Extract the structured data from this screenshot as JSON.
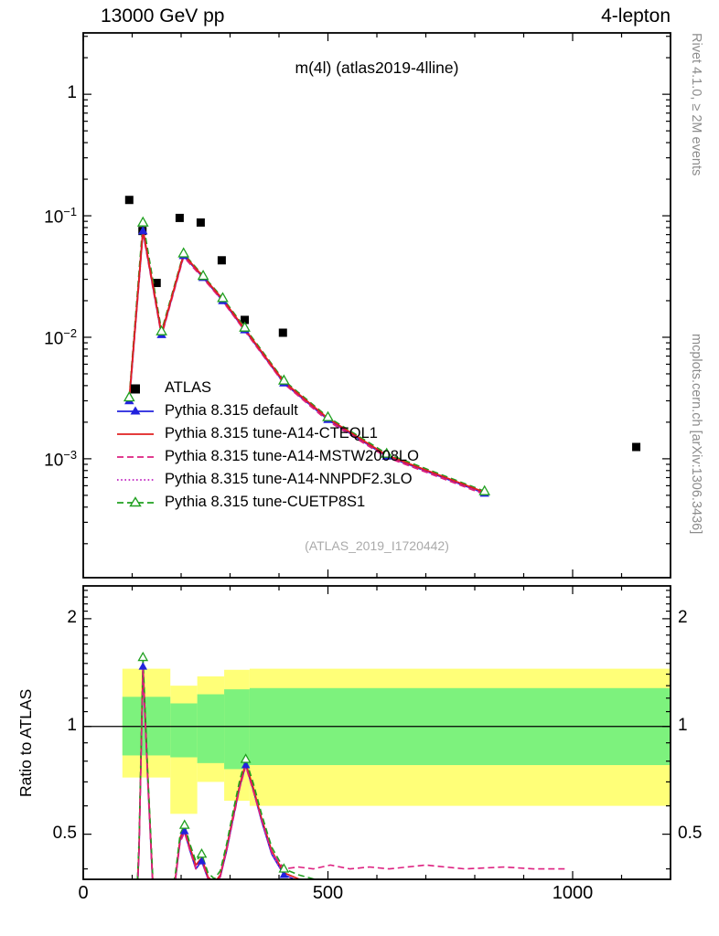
{
  "header": {
    "left": "13000 GeV pp",
    "right": "4-lepton"
  },
  "watermarks": {
    "right_top": "Rivet 4.1.0, ≥ 2M events",
    "right_bottom": "mcplots.cern.ch [arXiv:1306.3436]",
    "analysis": "(ATLAS_2019_I1720442)"
  },
  "chart_data": {
    "type": "line",
    "title": "m(4l) (atlas2019-4lline)",
    "xlabel": "",
    "x_range": [
      0,
      1200
    ],
    "x_ticks": [
      0,
      500,
      1000
    ],
    "x_minor_step": 100,
    "main": {
      "y_scale": "log",
      "y_range": [
        0.000105,
        3.2
      ],
      "y_ticks": [
        1,
        0.1,
        0.01,
        0.001
      ],
      "x": [
        94,
        122,
        160,
        205,
        245,
        285,
        330,
        410,
        500,
        620,
        820
      ],
      "atlas": {
        "label": "ATLAS",
        "color": "#000000",
        "x": [
          94,
          121,
          150,
          197,
          240,
          283,
          330,
          408,
          1130
        ],
        "y": [
          0.135,
          0.075,
          0.028,
          0.096,
          0.088,
          0.043,
          0.0139,
          0.0109,
          0.00125
        ]
      },
      "series": [
        {
          "name": "Pythia 8.315 default",
          "color": "#2222dd",
          "dash": "solid",
          "marker": "triangle-filled",
          "y": [
            0.003,
            0.075,
            0.0105,
            0.047,
            0.031,
            0.02,
            0.0115,
            0.0042,
            0.0021,
            0.00105,
            0.00052
          ]
        },
        {
          "name": "Pythia 8.315 tune-A14-CTEQL1",
          "color": "#e02020",
          "dash": "solid",
          "marker": "none",
          "y": [
            0.0031,
            0.077,
            0.0107,
            0.048,
            0.0315,
            0.0205,
            0.0117,
            0.0043,
            0.00215,
            0.00107,
            0.00053
          ]
        },
        {
          "name": "Pythia 8.315 tune-A14-MSTW2008LO",
          "color": "#dd2080",
          "dash": "dashed",
          "marker": "none",
          "y": [
            0.0029,
            0.073,
            0.0103,
            0.046,
            0.0305,
            0.0198,
            0.0113,
            0.00415,
            0.00205,
            0.00103,
            0.00051
          ]
        },
        {
          "name": "Pythia 8.315 tune-A14-NNPDF2.3LO",
          "color": "#c020c0",
          "dash": "dotted",
          "marker": "none",
          "y": [
            0.003,
            0.076,
            0.0106,
            0.047,
            0.031,
            0.02,
            0.0115,
            0.0042,
            0.0021,
            0.00105,
            0.00052
          ]
        },
        {
          "name": "Pythia 8.315 tune-CUETP8S1",
          "color": "#20a020",
          "dash": "dashed",
          "marker": "triangle-open",
          "y": [
            0.0032,
            0.088,
            0.0112,
            0.049,
            0.032,
            0.021,
            0.012,
            0.0044,
            0.0022,
            0.0011,
            0.00054
          ]
        }
      ]
    },
    "ratio": {
      "ylabel": "Ratio to ATLAS",
      "y_scale": "log",
      "y_range": [
        0.374,
        2.47
      ],
      "y_ticks": [
        0.5,
        1,
        2
      ],
      "band_colors": {
        "yellow": "#ffff78",
        "green": "#7df27d"
      },
      "bands_yellow": [
        [
          80,
          178,
          0.72,
          1.45
        ],
        [
          178,
          233,
          0.57,
          1.3
        ],
        [
          233,
          288,
          0.7,
          1.38
        ],
        [
          288,
          340,
          0.62,
          1.44
        ],
        [
          340,
          1200,
          0.6,
          1.45
        ]
      ],
      "bands_green": [
        [
          80,
          178,
          0.83,
          1.21
        ],
        [
          178,
          233,
          0.82,
          1.16
        ],
        [
          233,
          288,
          0.79,
          1.23
        ],
        [
          288,
          340,
          0.76,
          1.27
        ],
        [
          340,
          1200,
          0.78,
          1.28
        ]
      ],
      "x": [
        100,
        106,
        114,
        122,
        132,
        142,
        152,
        162,
        175,
        188,
        198,
        207,
        218,
        230,
        242,
        255,
        268,
        280,
        293,
        307,
        320,
        332,
        348,
        365,
        385,
        410,
        440,
        470,
        505,
        545,
        585,
        625
      ],
      "marker_idx": [
        3,
        11,
        14,
        21,
        25
      ],
      "series_r": [
        {
          "r": [
            0.2,
            0.24,
            0.45,
            1.47,
            0.7,
            0.36,
            0.3,
            0.29,
            0.31,
            0.37,
            0.48,
            0.51,
            0.45,
            0.4,
            0.42,
            0.375,
            0.36,
            0.38,
            0.45,
            0.56,
            0.68,
            0.78,
            0.66,
            0.54,
            0.44,
            0.385,
            0.37,
            0.36,
            0.355,
            0.35,
            0.35,
            0.35
          ]
        },
        {
          "r": [
            0.205,
            0.25,
            0.46,
            1.5,
            0.72,
            0.37,
            0.305,
            0.295,
            0.315,
            0.375,
            0.49,
            0.52,
            0.46,
            0.41,
            0.43,
            0.38,
            0.365,
            0.385,
            0.46,
            0.57,
            0.69,
            0.79,
            0.67,
            0.55,
            0.45,
            0.39,
            0.375,
            0.365,
            0.36,
            0.355,
            0.355,
            0.355
          ]
        },
        {
          "x": [
            100,
            106,
            114,
            122,
            132,
            142,
            152,
            162,
            175,
            188,
            198,
            207,
            218,
            230,
            242,
            255,
            268,
            280,
            293,
            307,
            320,
            332,
            348,
            365,
            385,
            410,
            440,
            470,
            505,
            545,
            585,
            625,
            700,
            780,
            860,
            920,
            990
          ],
          "r": [
            0.2,
            0.24,
            0.445,
            1.45,
            0.69,
            0.355,
            0.3,
            0.29,
            0.31,
            0.37,
            0.475,
            0.505,
            0.45,
            0.4,
            0.42,
            0.375,
            0.36,
            0.38,
            0.45,
            0.555,
            0.675,
            0.775,
            0.655,
            0.545,
            0.445,
            0.4,
            0.405,
            0.4,
            0.41,
            0.4,
            0.405,
            0.4,
            0.41,
            0.4,
            0.405,
            0.4,
            0.4
          ]
        },
        {
          "r": [
            0.2,
            0.245,
            0.455,
            1.48,
            0.71,
            0.365,
            0.3,
            0.29,
            0.31,
            0.37,
            0.48,
            0.51,
            0.455,
            0.405,
            0.425,
            0.375,
            0.36,
            0.38,
            0.45,
            0.56,
            0.68,
            0.78,
            0.66,
            0.54,
            0.44,
            0.385,
            0.37,
            0.36,
            0.355,
            0.35,
            0.35,
            0.35
          ]
        },
        {
          "r": [
            0.21,
            0.26,
            0.48,
            1.56,
            0.74,
            0.38,
            0.31,
            0.3,
            0.32,
            0.385,
            0.5,
            0.53,
            0.47,
            0.42,
            0.44,
            0.39,
            0.375,
            0.395,
            0.47,
            0.585,
            0.71,
            0.81,
            0.69,
            0.565,
            0.46,
            0.4,
            0.385,
            0.375,
            0.37,
            0.365,
            0.365,
            0.365
          ]
        }
      ]
    }
  }
}
